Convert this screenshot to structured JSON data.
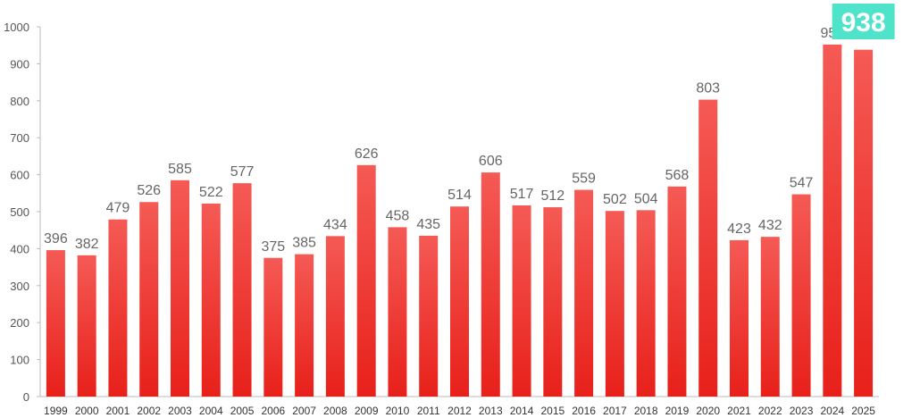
{
  "chart_data": {
    "type": "bar",
    "title": "",
    "xlabel": "",
    "ylabel": "",
    "ylim": [
      0,
      1000
    ],
    "yticks": [
      0,
      100,
      200,
      300,
      400,
      500,
      600,
      700,
      800,
      900,
      1000
    ],
    "grid": false,
    "categories": [
      "1999",
      "2000",
      "2001",
      "2002",
      "2003",
      "2004",
      "2005",
      "2006",
      "2007",
      "2008",
      "2009",
      "2010",
      "2011",
      "2012",
      "2013",
      "2014",
      "2015",
      "2016",
      "2017",
      "2018",
      "2019",
      "2020",
      "2021",
      "2022",
      "2023",
      "2024",
      "2025"
    ],
    "values": [
      396,
      382,
      479,
      526,
      585,
      522,
      577,
      375,
      385,
      434,
      626,
      458,
      435,
      514,
      606,
      517,
      512,
      559,
      502,
      504,
      568,
      803,
      423,
      432,
      547,
      952,
      938
    ],
    "highlight": {
      "category": "2025",
      "value": 938,
      "label": "938",
      "color": "#4fe3c9"
    },
    "colors": {
      "bar_top": "#f55a55",
      "bar_bottom": "#e8201a",
      "axis": "#bbbbbb"
    }
  }
}
